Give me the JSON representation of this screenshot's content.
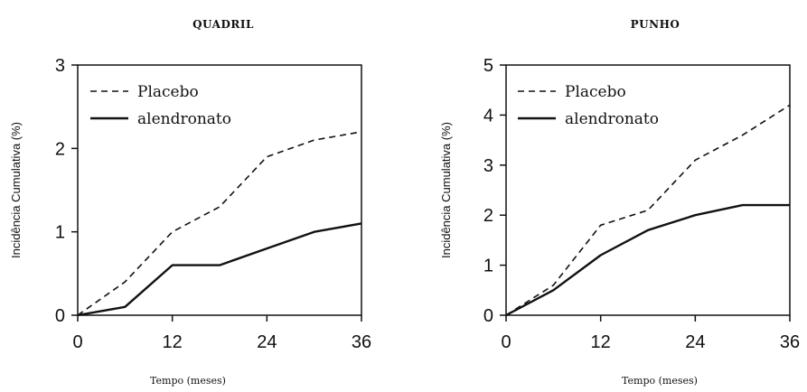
{
  "chart_data": [
    {
      "type": "line",
      "title": "QUADRIL",
      "xlabel": "Tempo (meses)",
      "ylabel": "Incidência Cumulativa (%)",
      "xlim": [
        0,
        36
      ],
      "ylim": [
        0,
        3
      ],
      "x_ticks": [
        0,
        12,
        24,
        36
      ],
      "y_ticks": [
        0,
        1,
        2,
        3
      ],
      "grid": false,
      "legend_position": "top-left",
      "series": [
        {
          "name": "Placebo",
          "style": "dashed",
          "x": [
            0,
            6,
            12,
            18,
            24,
            30,
            36
          ],
          "y": [
            0,
            0.4,
            1.0,
            1.3,
            1.9,
            2.1,
            2.2
          ]
        },
        {
          "name": "alendronato",
          "style": "solid",
          "x": [
            0,
            6,
            12,
            18,
            24,
            30,
            36
          ],
          "y": [
            0,
            0.1,
            0.6,
            0.6,
            0.8,
            1.0,
            1.1
          ]
        }
      ]
    },
    {
      "type": "line",
      "title": "PUNHO",
      "xlabel": "Tempo (meses)",
      "ylabel": "Incidência Cumulativa (%)",
      "xlim": [
        0,
        36
      ],
      "ylim": [
        0,
        5
      ],
      "x_ticks": [
        0,
        12,
        24,
        36
      ],
      "y_ticks": [
        0,
        1,
        2,
        3,
        4,
        5
      ],
      "grid": false,
      "legend_position": "top-left",
      "series": [
        {
          "name": "Placebo",
          "style": "dashed",
          "x": [
            0,
            6,
            12,
            18,
            24,
            30,
            36
          ],
          "y": [
            0,
            0.6,
            1.8,
            2.1,
            3.1,
            3.6,
            4.2
          ]
        },
        {
          "name": "alendronato",
          "style": "solid",
          "x": [
            0,
            6,
            12,
            18,
            24,
            30,
            36
          ],
          "y": [
            0,
            0.5,
            1.2,
            1.7,
            2.0,
            2.2,
            2.2
          ]
        }
      ]
    }
  ]
}
